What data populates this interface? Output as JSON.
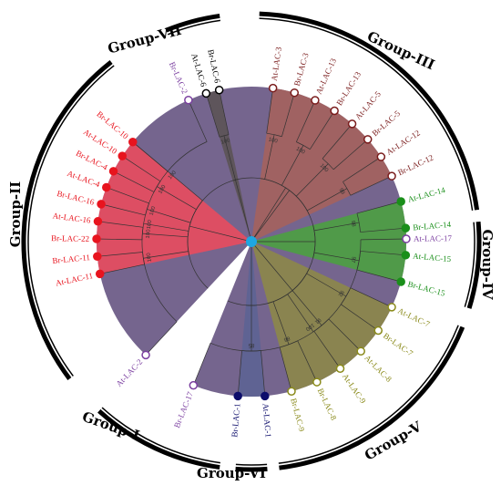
{
  "center_color": "#1ea7e1",
  "groups": [
    {
      "id": "I",
      "label": "Group-I",
      "color": "#5d4a7a",
      "node": "#7b3fa0",
      "leaves": [
        {
          "name": "At-LAC-2",
          "fill": false
        },
        {
          "name": "Br-LAC-2",
          "fill": false
        },
        {
          "name": "At-LAC-17",
          "fill": false
        },
        {
          "name": "Br-LAC-17",
          "fill": false
        }
      ]
    },
    {
      "id": "II",
      "label": "Group-II",
      "color": "#f04a5c",
      "node": "#e8141e",
      "leaves": [
        {
          "name": "At-LAC-11",
          "fill": true
        },
        {
          "name": "Br-LAC-11",
          "fill": true
        },
        {
          "name": "Br-LAC-22",
          "fill": true
        },
        {
          "name": "At-LAC-16",
          "fill": true
        },
        {
          "name": "Br-LAC-16",
          "fill": true
        },
        {
          "name": "At-LAC-4",
          "fill": true
        },
        {
          "name": "Br-LAC-4",
          "fill": true
        },
        {
          "name": "At-LAC-10",
          "fill": true
        },
        {
          "name": "Br-LAC-10",
          "fill": true
        }
      ]
    },
    {
      "id": "VII",
      "label": "Group-VII",
      "color": "#5a5252",
      "node": "#000000",
      "leaves": [
        {
          "name": "At-LAC-6",
          "fill": false
        },
        {
          "name": "Br-LAC-6",
          "fill": false
        }
      ]
    },
    {
      "id": "III",
      "label": "Group-III",
      "color": "#a8625a",
      "node": "#7a1c1c",
      "leaves": [
        {
          "name": "At-LAC-3",
          "fill": false
        },
        {
          "name": "Br-LAC-3",
          "fill": false
        },
        {
          "name": "At-LAC-13",
          "fill": false
        },
        {
          "name": "Br-LAC-13",
          "fill": false
        },
        {
          "name": "At-LAC-5",
          "fill": false
        },
        {
          "name": "Br-LAC-5",
          "fill": false
        },
        {
          "name": "At-LAC-12",
          "fill": false
        },
        {
          "name": "Br-LAC-12",
          "fill": false
        }
      ]
    },
    {
      "id": "IV",
      "label": "Group-IV",
      "color": "#4aa33d",
      "node": "#1a8f1a",
      "leaves": [
        {
          "name": "At-LAC-14",
          "fill": true
        },
        {
          "name": "Br-LAC-14",
          "fill": true
        },
        {
          "name": "At-LAC-15",
          "fill": true
        },
        {
          "name": "Br-LAC-15",
          "fill": true
        }
      ]
    },
    {
      "id": "V",
      "label": "Group-V",
      "color": "#8e8a45",
      "node": "#8a8a1a",
      "leaves": [
        {
          "name": "At-LAC-7",
          "fill": false
        },
        {
          "name": "Br-LAC-7",
          "fill": false
        },
        {
          "name": "At-LAC-8",
          "fill": false
        },
        {
          "name": "At-LAC-9",
          "fill": false
        },
        {
          "name": "Br-LAC-8",
          "fill": false
        },
        {
          "name": "Br-LAC-9",
          "fill": false
        }
      ]
    },
    {
      "id": "VI",
      "label": "Group-VI",
      "color": "#5c6394",
      "node": "#0d0d6b",
      "leaves": [
        {
          "name": "At-LAC-1",
          "fill": true
        },
        {
          "name": "Br-LAC-1",
          "fill": true
        }
      ]
    }
  ],
  "bootstrap": [
    "100",
    "100",
    "100",
    "100",
    "100",
    "100",
    "100",
    "100",
    "100",
    "100",
    "100",
    "99",
    "98",
    "97",
    "92",
    "91",
    "86",
    "85",
    "84",
    "83",
    "81",
    "80",
    "75",
    "73",
    "72",
    "70",
    "68",
    "64",
    "54",
    "53",
    "52",
    "50",
    "46",
    "35",
    "100",
    "99",
    "100",
    "100",
    "100",
    "100",
    "99"
  ]
}
